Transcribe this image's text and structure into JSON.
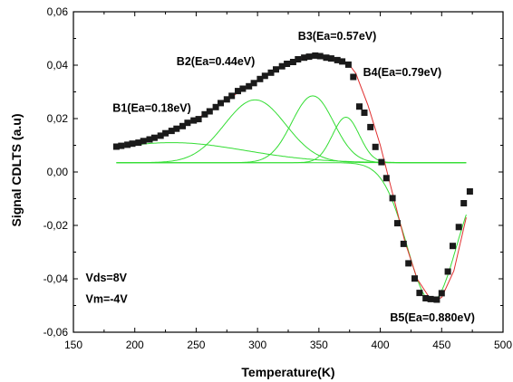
{
  "chart_data": {
    "type": "scatter",
    "title": "",
    "xlabel": "Temperature(K)",
    "ylabel": "Signal CDLTS (a.u)",
    "xlim": [
      150,
      500
    ],
    "ylim": [
      -0.06,
      0.06
    ],
    "xticks": [
      150,
      200,
      250,
      300,
      350,
      400,
      450,
      500
    ],
    "yticks": [
      -0.06,
      -0.04,
      -0.02,
      0.0,
      0.02,
      0.04,
      0.06
    ],
    "ytick_labels": [
      "-0,06",
      "-0,04",
      "-0,02",
      "0,00",
      "0,02",
      "0,04",
      "0,06"
    ],
    "grid": false,
    "colors": {
      "points": "#1a1a1a",
      "fit": "#e03030",
      "components": "#33dd33"
    },
    "measured": {
      "x": [
        185,
        189,
        194,
        198,
        203,
        207,
        212,
        216,
        221,
        225,
        230,
        234,
        239,
        243,
        248,
        252,
        257,
        261,
        266,
        270,
        275,
        279,
        284,
        288,
        293,
        297,
        302,
        306,
        311,
        315,
        320,
        324,
        329,
        333,
        338,
        342,
        347,
        351,
        356,
        360,
        365,
        369,
        374,
        378,
        383,
        387,
        392,
        396,
        401,
        405,
        410,
        414,
        419,
        423,
        428,
        432,
        437,
        441,
        446,
        450,
        455,
        459,
        464,
        468,
        473
      ],
      "y": [
        0.0095,
        0.0098,
        0.0102,
        0.0106,
        0.011,
        0.0116,
        0.0122,
        0.0128,
        0.0136,
        0.0145,
        0.0154,
        0.0162,
        0.0172,
        0.0184,
        0.0193,
        0.0198,
        0.0216,
        0.0227,
        0.0243,
        0.0258,
        0.0272,
        0.0285,
        0.0303,
        0.0312,
        0.0321,
        0.0333,
        0.0348,
        0.036,
        0.0372,
        0.0384,
        0.0396,
        0.0405,
        0.0412,
        0.0422,
        0.0428,
        0.0432,
        0.0436,
        0.0434,
        0.0428,
        0.0425,
        0.0419,
        0.0414,
        0.0402,
        0.0356,
        0.0245,
        0.0222,
        0.0168,
        0.0094,
        0.0037,
        -0.0023,
        -0.0098,
        -0.0192,
        -0.0269,
        -0.0342,
        -0.0399,
        -0.0453,
        -0.0473,
        -0.0476,
        -0.0478,
        -0.0454,
        -0.0373,
        -0.0277,
        -0.0206,
        -0.0117,
        -0.0073
      ]
    },
    "fit": {
      "x": [
        185,
        200,
        215,
        230,
        245,
        260,
        275,
        290,
        305,
        320,
        335,
        345,
        355,
        365,
        375,
        380,
        390,
        400,
        410,
        420,
        430,
        440,
        445,
        450,
        460,
        470
      ],
      "y": [
        0.0095,
        0.0105,
        0.0125,
        0.015,
        0.0185,
        0.0225,
        0.027,
        0.0315,
        0.0355,
        0.0395,
        0.0425,
        0.0436,
        0.043,
        0.042,
        0.04,
        0.037,
        0.025,
        0.01,
        -0.008,
        -0.026,
        -0.04,
        -0.047,
        -0.048,
        -0.047,
        -0.037,
        -0.017
      ]
    },
    "components": [
      {
        "center": 230,
        "amplitude": 0.0075,
        "width": 60
      },
      {
        "center": 298,
        "amplitude": 0.0235,
        "width": 25
      },
      {
        "center": 345,
        "amplitude": 0.025,
        "width": 17
      },
      {
        "center": 372,
        "amplitude": 0.017,
        "width": 11
      },
      {
        "center": 442,
        "amplitude": -0.052,
        "width": 20
      }
    ],
    "component_baseline": 0.0035,
    "component_x_range": [
      185,
      470
    ],
    "annotations": [
      {
        "text": "B1(Ea=0.18eV)",
        "x": 182,
        "y": 0.0225
      },
      {
        "text": "B2(Ea=0.44eV)",
        "x": 234,
        "y": 0.04
      },
      {
        "text": "B3(Ea=0.57eV)",
        "x": 333,
        "y": 0.0495
      },
      {
        "text": "B4(Ea=0.79eV)",
        "x": 386,
        "y": 0.036
      },
      {
        "text": "B5(Ea=0.880eV)",
        "x": 408,
        "y": -0.056
      },
      {
        "text": "Vds=8V",
        "x": 160,
        "y": -0.041
      },
      {
        "text": "Vm=-4V",
        "x": 160,
        "y": -0.049
      }
    ]
  }
}
